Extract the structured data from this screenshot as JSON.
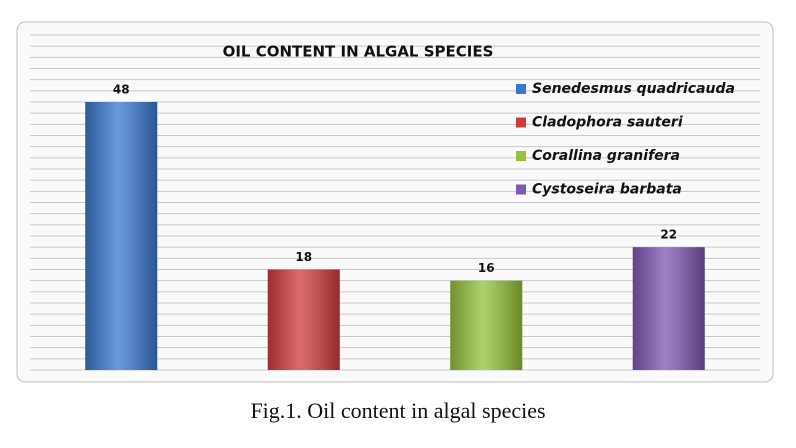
{
  "chart_data": {
    "type": "bar",
    "title": "OIL CONTENT IN ALGAL SPECIES",
    "series": [
      {
        "name": "Senedesmus quadricauda",
        "color": "#3a78d0",
        "values": [
          48
        ]
      },
      {
        "name": "Cladophora sauteri",
        "color": "#d13b3b",
        "values": [
          18
        ]
      },
      {
        "name": "Corallina granifera",
        "color": "#95c23a",
        "values": [
          16
        ]
      },
      {
        "name": "Cystoseira barbata",
        "color": "#7e58b3",
        "values": [
          22
        ]
      }
    ],
    "ylim": [
      0,
      60
    ],
    "yticks": [
      0,
      2,
      4,
      6,
      8,
      10,
      12,
      14,
      16,
      18,
      20,
      22,
      24,
      26,
      28,
      30,
      32,
      34,
      36,
      38,
      40,
      42,
      44,
      46,
      48,
      50,
      52,
      54,
      56,
      58,
      60
    ],
    "grid": true,
    "tick_labels": false,
    "legend": "right",
    "caption": "Fig.1. Oil content in algal species"
  }
}
